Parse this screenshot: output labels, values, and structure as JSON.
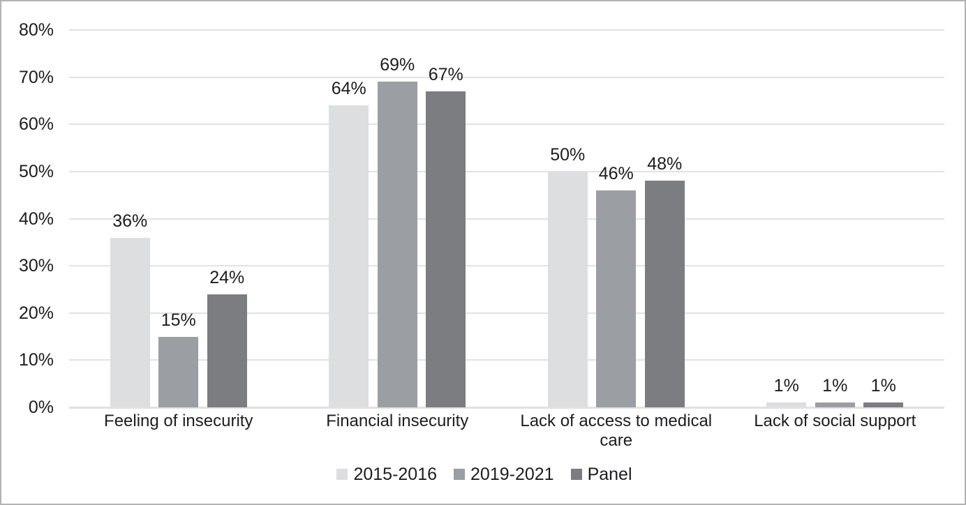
{
  "chart_data": {
    "type": "bar",
    "title": "",
    "categories": [
      "Feeling of insecurity",
      "Financial insecurity",
      "Lack of access to medical care",
      "Lack of social support"
    ],
    "series": [
      {
        "name": "2015-2016",
        "color": "#dcdee0",
        "values": [
          36,
          64,
          50,
          1
        ]
      },
      {
        "name": "2019-2021",
        "color": "#9b9ea2",
        "values": [
          15,
          69,
          46,
          1
        ]
      },
      {
        "name": "Panel",
        "color": "#7b7d80",
        "values": [
          24,
          67,
          48,
          1
        ]
      }
    ],
    "value_suffix": "%",
    "data_labels": true,
    "ylim": [
      0,
      80
    ],
    "ytick_step": 10,
    "ytick_labels": [
      "0%",
      "10%",
      "20%",
      "30%",
      "40%",
      "50%",
      "60%",
      "70%",
      "80%"
    ],
    "grid": true,
    "legend_position": "bottom"
  },
  "colors": {
    "gridline": "#e0e2e3",
    "axis_line": "#e0e2e3",
    "text": "#1d1d1f",
    "frame_border": "#b3b3b3",
    "background": "#ffffff"
  }
}
